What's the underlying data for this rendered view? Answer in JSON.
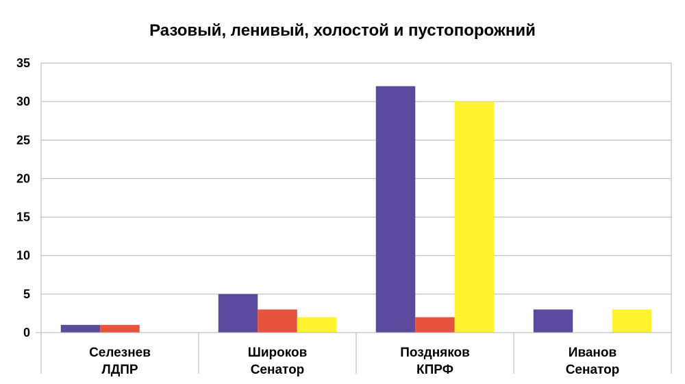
{
  "chart_data": {
    "type": "bar",
    "title": "Разовый, ленивый, холостой и пустопорожний",
    "xlabel": "",
    "ylabel": "",
    "ylim": [
      0,
      35
    ],
    "yticks": [
      0,
      5,
      10,
      15,
      20,
      25,
      30,
      35
    ],
    "grid": true,
    "legend": "none",
    "categories": [
      [
        "Селезнев",
        "ЛДПР"
      ],
      [
        "Широков",
        "Сенатор"
      ],
      [
        "Поздняков",
        "КПРФ"
      ],
      [
        "Иванов",
        "Сенатор"
      ]
    ],
    "series": [
      {
        "color": "#5b4a9e",
        "values": [
          1,
          5,
          32,
          3
        ]
      },
      {
        "color": "#e8533f",
        "values": [
          1,
          3,
          2,
          0
        ]
      },
      {
        "color": "#fff22e",
        "values": [
          0,
          2,
          30,
          3
        ]
      }
    ]
  }
}
